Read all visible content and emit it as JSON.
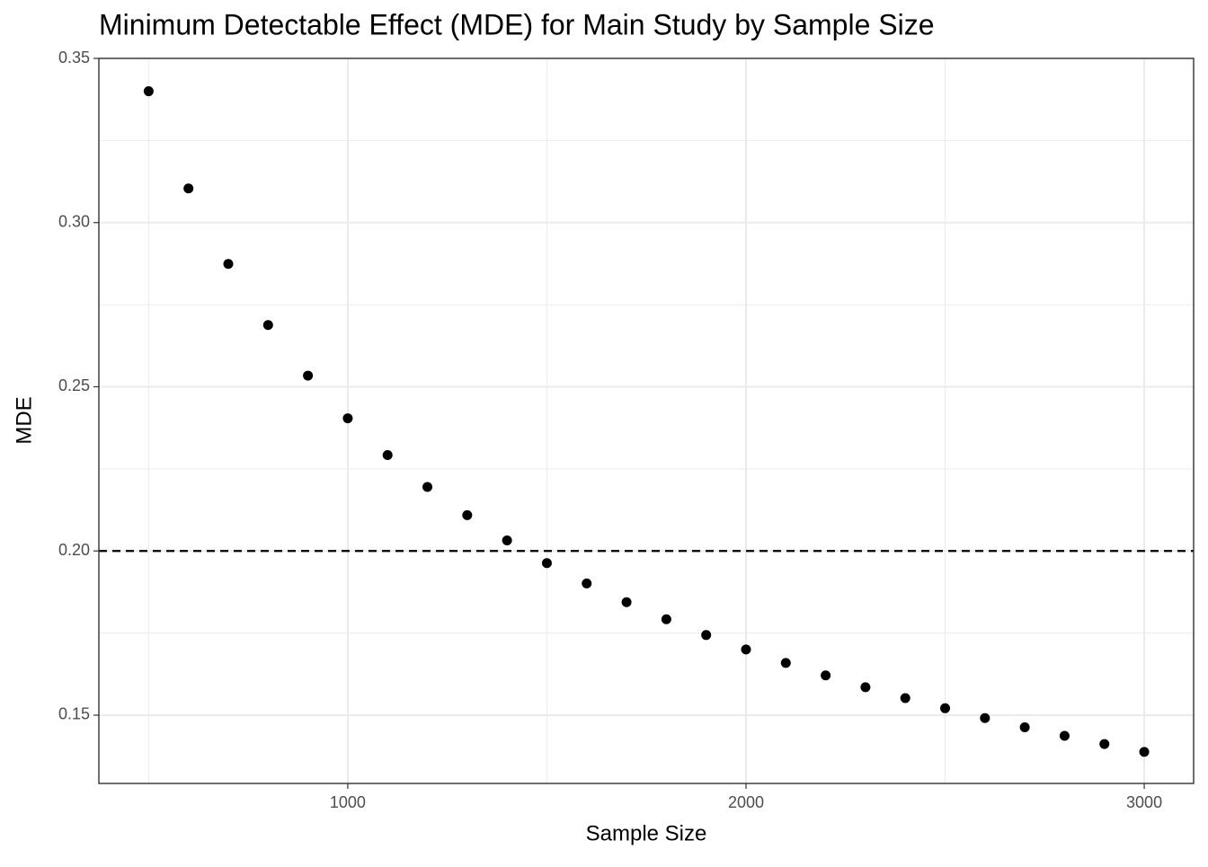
{
  "chart_data": {
    "type": "scatter",
    "title": "Minimum Detectable Effect (MDE) for Main Study by Sample Size",
    "x_label": "Sample Size",
    "y_label": "MDE",
    "x": [
      500,
      600,
      700,
      800,
      900,
      1000,
      1100,
      1200,
      1300,
      1400,
      1500,
      1600,
      1700,
      1800,
      1900,
      2000,
      2100,
      2200,
      2300,
      2400,
      2500,
      2600,
      2700,
      2800,
      2900,
      3000
    ],
    "values": [
      0.34,
      0.3104,
      0.2874,
      0.2688,
      0.2534,
      0.2404,
      0.2292,
      0.2195,
      0.2109,
      0.2032,
      0.1963,
      0.1901,
      0.1844,
      0.1792,
      0.1744,
      0.17,
      0.1659,
      0.1621,
      0.1585,
      0.1552,
      0.1521,
      0.1491,
      0.1463,
      0.1437,
      0.1412,
      0.1388
    ],
    "color": "#000000",
    "xlim": [
      375,
      3124
    ],
    "ylim": [
      0.1292,
      0.35
    ],
    "xticks": [
      1000,
      2000,
      3000
    ],
    "yticks": [
      {
        "value": 0.15,
        "label": "0.15"
      },
      {
        "value": 0.2,
        "label": "0.20"
      },
      {
        "value": 0.25,
        "label": "0.25"
      },
      {
        "value": 0.3,
        "label": "0.30"
      },
      {
        "value": 0.35,
        "label": "0.35"
      }
    ],
    "x_minor_grid": [
      500,
      1500,
      2500
    ],
    "y_minor_grid": [
      0.175,
      0.225,
      0.275,
      0.325
    ],
    "reference_line": 0.2,
    "grid": true
  }
}
